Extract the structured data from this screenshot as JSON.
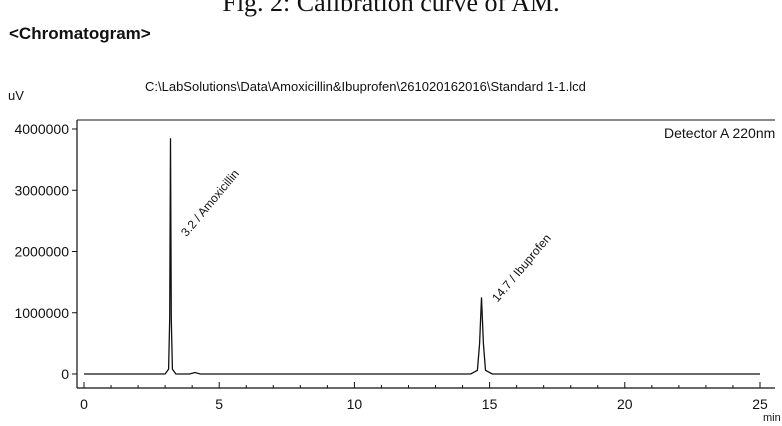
{
  "figure_caption": "Fig. 2: Calibration curve of AM.",
  "section_heading": "<Chromatogram>",
  "chart_data": {
    "type": "line",
    "title": "C:\\LabSolutions\\Data\\Amoxicillin&Ibuprofen\\261020162016\\Standard  1-1.lcd",
    "ylabel": "uV",
    "xlabel": "min",
    "detector_label": "Detector A 220nm",
    "xlim": [
      0,
      25
    ],
    "ylim": [
      -200000,
      4200000
    ],
    "x_ticks": [
      "0",
      "5",
      "10",
      "15",
      "20",
      "25"
    ],
    "y_ticks": [
      "4000000",
      "3000000",
      "2000000",
      "1000000",
      "0"
    ],
    "grid": false,
    "series": [
      {
        "x": [
          0,
          3.0,
          3.13,
          3.17,
          3.2,
          3.23,
          3.27,
          3.4,
          3.9,
          4.1,
          4.3,
          4.6,
          14.3,
          14.55,
          14.63,
          14.7,
          14.77,
          14.85,
          15.1,
          25
        ],
        "y": [
          0,
          0,
          80000,
          900000,
          3850000,
          900000,
          80000,
          0,
          0,
          25000,
          0,
          0,
          0,
          60000,
          500000,
          1250000,
          500000,
          60000,
          0,
          0
        ]
      }
    ],
    "peak_labels": [
      {
        "text": "3.2 / Amoxicillin",
        "x": 3.2,
        "y": 3850000
      },
      {
        "text": "14.7 / Ibuprofen",
        "x": 14.7,
        "y": 1250000
      }
    ]
  }
}
